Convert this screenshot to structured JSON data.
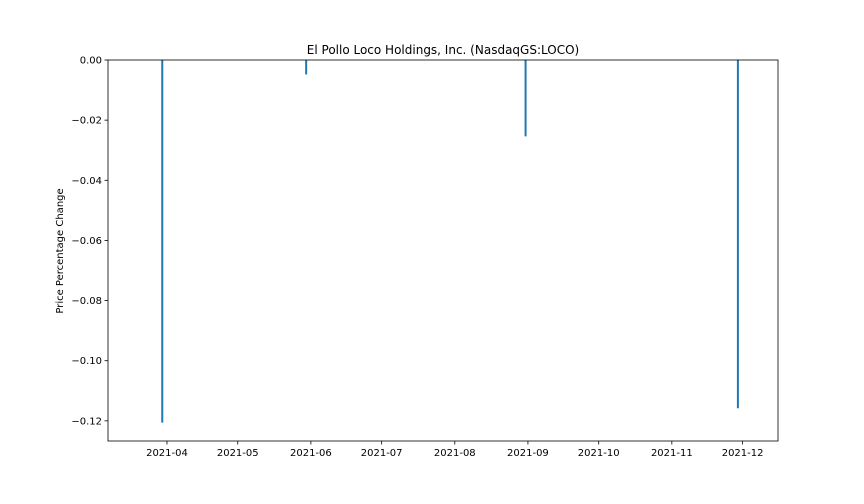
{
  "chart_data": {
    "type": "bar",
    "title": "El Pollo Loco Holdings, Inc. (NasdaqGS:LOCO)",
    "xlabel": "",
    "ylabel": "Price Percentage Change",
    "x_range": [
      "2021-03-07",
      "2021-12-16"
    ],
    "ylim": [
      -0.1267,
      0.0
    ],
    "x_ticks": [
      "2021-04",
      "2021-05",
      "2021-06",
      "2021-07",
      "2021-08",
      "2021-09",
      "2021-10",
      "2021-11",
      "2021-12"
    ],
    "y_ticks": [
      0.0,
      -0.02,
      -0.04,
      -0.06,
      -0.08,
      -0.1,
      -0.12
    ],
    "y_tick_labels": [
      "0.00",
      "−0.02",
      "−0.04",
      "−0.06",
      "−0.08",
      "−0.10",
      "−0.12"
    ],
    "grid": false,
    "legend": "none",
    "color": "#1f77b4",
    "series": [
      {
        "x": [
          "2021-03-30",
          "2021-05-30",
          "2021-08-31",
          "2021-11-29"
        ],
        "values": [
          -0.1206,
          -0.0048,
          -0.0254,
          -0.1158
        ]
      }
    ]
  }
}
